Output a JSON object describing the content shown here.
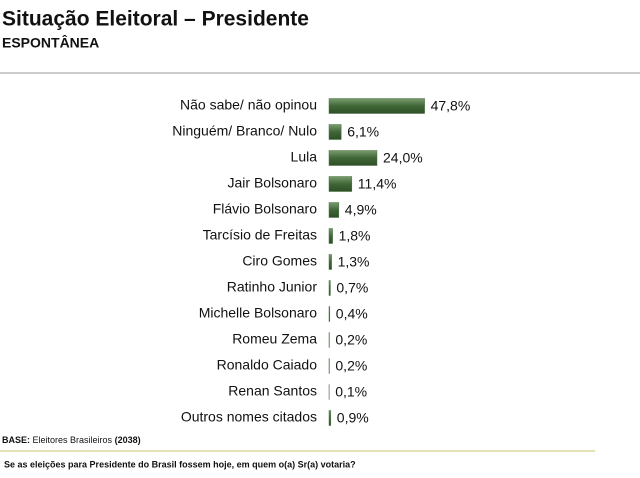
{
  "chart_data": {
    "type": "bar",
    "orientation": "horizontal",
    "title": "Situação Eleitoral – Presidente",
    "subtitle": "ESPONTÂNEA",
    "categories": [
      "Não sabe/ não opinou",
      "Ninguém/ Branco/ Nulo",
      "Lula",
      "Jair Bolsonaro",
      "Flávio Bolsonaro",
      "Tarcísio de Freitas",
      "Ciro Gomes",
      "Ratinho Junior",
      "Michelle Bolsonaro",
      "Romeu Zema",
      "Ronaldo Caiado",
      "Renan Santos",
      "Outros nomes citados"
    ],
    "values": [
      47.8,
      6.1,
      24.0,
      11.4,
      4.9,
      1.8,
      1.3,
      0.7,
      0.4,
      0.2,
      0.2,
      0.1,
      0.9
    ],
    "value_labels": [
      "47,8%",
      "6,1%",
      "24,0%",
      "11,4%",
      "4,9%",
      "1,8%",
      "1,3%",
      "0,7%",
      "0,4%",
      "0,2%",
      "0,2%",
      "0,1%",
      "0,9%"
    ],
    "color": "#4b7344",
    "base_label": "BASE:",
    "base_text": "Eleitores Brasileiros",
    "base_n": "(2038)",
    "question": "Se as eleições para Presidente do Brasil fossem hoje, em quem o(a) Sr(a) votaria?"
  }
}
